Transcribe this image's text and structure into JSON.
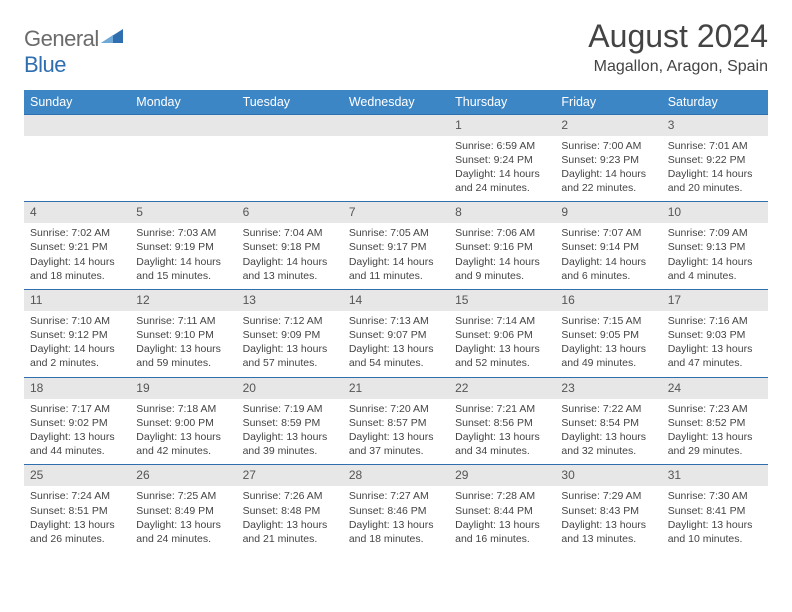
{
  "logo": {
    "gray": "General",
    "blue": "Blue"
  },
  "title": "August 2024",
  "location": "Magallon, Aragon, Spain",
  "colors": {
    "header_bg": "#3d86c6",
    "rule": "#2f6fb0",
    "num_bg": "#e7e7e7",
    "text": "#444444",
    "logo_gray": "#6b6b6b",
    "logo_blue": "#2f6fb0"
  },
  "weekdays": [
    "Sunday",
    "Monday",
    "Tuesday",
    "Wednesday",
    "Thursday",
    "Friday",
    "Saturday"
  ],
  "weeks": [
    {
      "nums": [
        "",
        "",
        "",
        "",
        "1",
        "2",
        "3"
      ],
      "cells": [
        "",
        "",
        "",
        "",
        "Sunrise: 6:59 AM\nSunset: 9:24 PM\nDaylight: 14 hours and 24 minutes.",
        "Sunrise: 7:00 AM\nSunset: 9:23 PM\nDaylight: 14 hours and 22 minutes.",
        "Sunrise: 7:01 AM\nSunset: 9:22 PM\nDaylight: 14 hours and 20 minutes."
      ]
    },
    {
      "nums": [
        "4",
        "5",
        "6",
        "7",
        "8",
        "9",
        "10"
      ],
      "cells": [
        "Sunrise: 7:02 AM\nSunset: 9:21 PM\nDaylight: 14 hours and 18 minutes.",
        "Sunrise: 7:03 AM\nSunset: 9:19 PM\nDaylight: 14 hours and 15 minutes.",
        "Sunrise: 7:04 AM\nSunset: 9:18 PM\nDaylight: 14 hours and 13 minutes.",
        "Sunrise: 7:05 AM\nSunset: 9:17 PM\nDaylight: 14 hours and 11 minutes.",
        "Sunrise: 7:06 AM\nSunset: 9:16 PM\nDaylight: 14 hours and 9 minutes.",
        "Sunrise: 7:07 AM\nSunset: 9:14 PM\nDaylight: 14 hours and 6 minutes.",
        "Sunrise: 7:09 AM\nSunset: 9:13 PM\nDaylight: 14 hours and 4 minutes."
      ]
    },
    {
      "nums": [
        "11",
        "12",
        "13",
        "14",
        "15",
        "16",
        "17"
      ],
      "cells": [
        "Sunrise: 7:10 AM\nSunset: 9:12 PM\nDaylight: 14 hours and 2 minutes.",
        "Sunrise: 7:11 AM\nSunset: 9:10 PM\nDaylight: 13 hours and 59 minutes.",
        "Sunrise: 7:12 AM\nSunset: 9:09 PM\nDaylight: 13 hours and 57 minutes.",
        "Sunrise: 7:13 AM\nSunset: 9:07 PM\nDaylight: 13 hours and 54 minutes.",
        "Sunrise: 7:14 AM\nSunset: 9:06 PM\nDaylight: 13 hours and 52 minutes.",
        "Sunrise: 7:15 AM\nSunset: 9:05 PM\nDaylight: 13 hours and 49 minutes.",
        "Sunrise: 7:16 AM\nSunset: 9:03 PM\nDaylight: 13 hours and 47 minutes."
      ]
    },
    {
      "nums": [
        "18",
        "19",
        "20",
        "21",
        "22",
        "23",
        "24"
      ],
      "cells": [
        "Sunrise: 7:17 AM\nSunset: 9:02 PM\nDaylight: 13 hours and 44 minutes.",
        "Sunrise: 7:18 AM\nSunset: 9:00 PM\nDaylight: 13 hours and 42 minutes.",
        "Sunrise: 7:19 AM\nSunset: 8:59 PM\nDaylight: 13 hours and 39 minutes.",
        "Sunrise: 7:20 AM\nSunset: 8:57 PM\nDaylight: 13 hours and 37 minutes.",
        "Sunrise: 7:21 AM\nSunset: 8:56 PM\nDaylight: 13 hours and 34 minutes.",
        "Sunrise: 7:22 AM\nSunset: 8:54 PM\nDaylight: 13 hours and 32 minutes.",
        "Sunrise: 7:23 AM\nSunset: 8:52 PM\nDaylight: 13 hours and 29 minutes."
      ]
    },
    {
      "nums": [
        "25",
        "26",
        "27",
        "28",
        "29",
        "30",
        "31"
      ],
      "cells": [
        "Sunrise: 7:24 AM\nSunset: 8:51 PM\nDaylight: 13 hours and 26 minutes.",
        "Sunrise: 7:25 AM\nSunset: 8:49 PM\nDaylight: 13 hours and 24 minutes.",
        "Sunrise: 7:26 AM\nSunset: 8:48 PM\nDaylight: 13 hours and 21 minutes.",
        "Sunrise: 7:27 AM\nSunset: 8:46 PM\nDaylight: 13 hours and 18 minutes.",
        "Sunrise: 7:28 AM\nSunset: 8:44 PM\nDaylight: 13 hours and 16 minutes.",
        "Sunrise: 7:29 AM\nSunset: 8:43 PM\nDaylight: 13 hours and 13 minutes.",
        "Sunrise: 7:30 AM\nSunset: 8:41 PM\nDaylight: 13 hours and 10 minutes."
      ]
    }
  ]
}
